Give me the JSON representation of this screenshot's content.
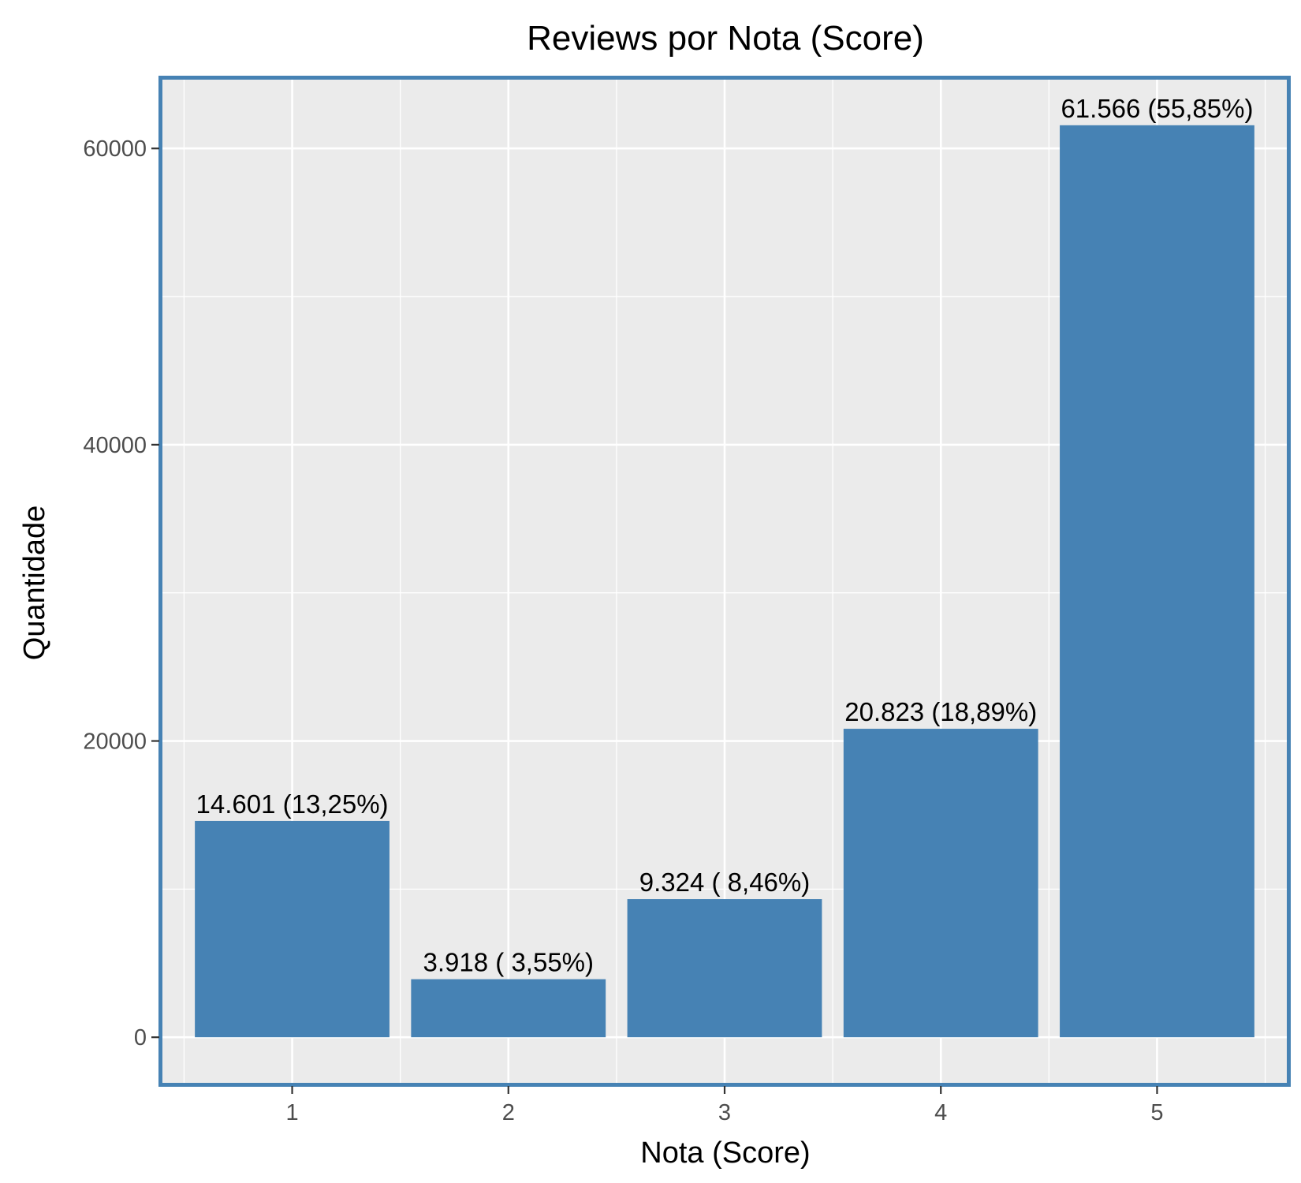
{
  "chart_data": {
    "type": "bar",
    "title": "Reviews por Nota (Score)",
    "xlabel": "Nota (Score)",
    "ylabel": "Quantidade",
    "categories": [
      "1",
      "2",
      "3",
      "4",
      "5"
    ],
    "values": [
      14601,
      3918,
      9324,
      20823,
      61566
    ],
    "labels": [
      "14.601 (13,25%)",
      "3.918 ( 3,55%)",
      "9.324 ( 8,46%)",
      "20.823 (18,89%)",
      "61.566 (55,85%)"
    ],
    "yticks": [
      0,
      20000,
      40000,
      60000
    ],
    "ytick_labels": [
      "0",
      "20000",
      "40000",
      "60000"
    ],
    "ylim": [
      -3078,
      64644
    ],
    "grid": true,
    "colors": {
      "bar": "#4682B4",
      "panel_background": "#EBEBEB",
      "panel_border": "#4682B4",
      "grid": "#FFFFFF",
      "tick_text": "#4D4D4D",
      "axis_tick": "#333333"
    }
  }
}
